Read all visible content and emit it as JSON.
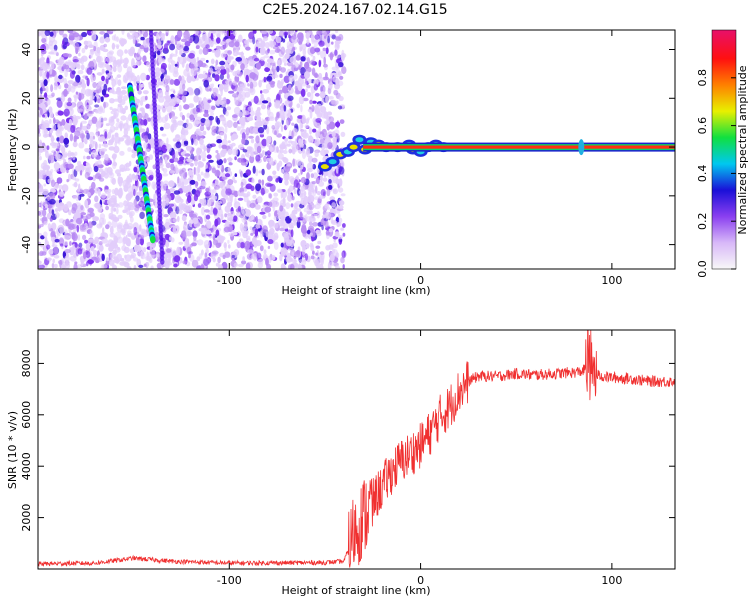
{
  "figure": {
    "title": "C2E5.2024.167.02.14.G15"
  },
  "chart_data": [
    {
      "type": "heatmap",
      "title": "C2E5.2024.167.02.14.G15",
      "xlabel": "Height of straight line (km)",
      "ylabel": "Frequency (Hz)",
      "xlim": [
        -200,
        133
      ],
      "ylim": [
        -50,
        48
      ],
      "xticks": [
        -100,
        0,
        100
      ],
      "yticks": [
        -40,
        -20,
        0,
        20,
        40
      ],
      "grid": false,
      "colorbar": {
        "label": "Normalized spectral amplitude",
        "range": [
          0,
          1
        ],
        "ticks": [
          0.0,
          0.2,
          0.4,
          0.6,
          0.8
        ],
        "colormap": [
          "#f8f8f8",
          "#d8b8f8",
          "#8a3ff0",
          "#1a10d8",
          "#00c8f0",
          "#10e040",
          "#e8f000",
          "#ff8000",
          "#ff1010",
          "#e8106a"
        ]
      },
      "features": {
        "noise_region_x": [
          -200,
          -40
        ],
        "carrier_frequency": 0,
        "carrier_start_x": -30,
        "fading_line": {
          "x": [
            -152,
            -140
          ],
          "y": [
            25,
            -38
          ]
        }
      }
    },
    {
      "type": "line",
      "xlabel": "Height of straight line (km)",
      "ylabel": "SNR (10 * v/v)",
      "xlim": [
        -200,
        133
      ],
      "ylim": [
        0,
        9300
      ],
      "xticks": [
        -100,
        0,
        100
      ],
      "yticks": [
        2000,
        4000,
        6000,
        8000
      ],
      "grid": false,
      "series": [
        {
          "color": "#ff2020",
          "x": [
            -200,
            -170,
            -150,
            -130,
            -100,
            -70,
            -50,
            -40,
            -35,
            -30,
            -25,
            -20,
            -15,
            -10,
            -5,
            0,
            5,
            10,
            15,
            20,
            25,
            30,
            40,
            50,
            60,
            70,
            80,
            85,
            88,
            90,
            95,
            100,
            110,
            120,
            133
          ],
          "y": [
            200,
            230,
            420,
            300,
            230,
            240,
            250,
            300,
            1400,
            2000,
            2600,
            3200,
            3800,
            4200,
            4500,
            4800,
            5300,
            5900,
            6300,
            6900,
            7300,
            7500,
            7500,
            7600,
            7550,
            7600,
            7650,
            7700,
            8200,
            7600,
            7500,
            7450,
            7400,
            7300,
            7300
          ]
        }
      ]
    }
  ]
}
